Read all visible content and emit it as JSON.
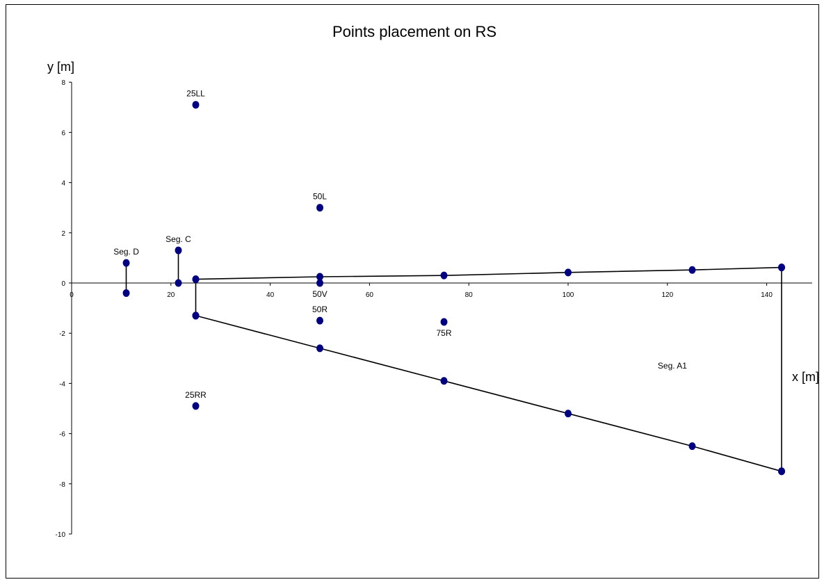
{
  "chart_data": {
    "type": "scatter",
    "title": "Points placement on RS",
    "xlabel": "x [m]",
    "ylabel": "y [m]",
    "xlim": [
      0,
      150
    ],
    "ylim": [
      -10,
      8
    ],
    "x_ticks": [
      0,
      20,
      40,
      60,
      80,
      100,
      120,
      140
    ],
    "y_ticks": [
      8,
      6,
      4,
      2,
      0,
      -2,
      -4,
      -6,
      -8,
      -10
    ],
    "x_tick_labels": [
      "0",
      "20",
      "40",
      "60",
      "80",
      "100",
      "120",
      "140"
    ],
    "y_tick_labels": [
      "8",
      "6",
      "4",
      "2",
      "0",
      "-2",
      "-4",
      "-6",
      "-8",
      "-10"
    ],
    "grid": false,
    "legend": "none",
    "marker_color": "#000080",
    "line_color": "#000000",
    "series": [
      {
        "points": [
          [
            25,
            0.15
          ],
          [
            50,
            0.25
          ],
          [
            75,
            0.3
          ],
          [
            100,
            0.42
          ],
          [
            125,
            0.52
          ],
          [
            143,
            0.62
          ]
        ],
        "line": true
      },
      {
        "points": [
          [
            25,
            -1.3
          ],
          [
            50,
            -2.6
          ],
          [
            75,
            -3.9
          ],
          [
            100,
            -5.2
          ],
          [
            125,
            -6.5
          ],
          [
            143,
            -7.5
          ]
        ],
        "line": true
      },
      {
        "points": [
          [
            25,
            0.15
          ],
          [
            25,
            -1.3
          ]
        ],
        "line": true
      },
      {
        "points": [
          [
            143,
            0.62
          ],
          [
            143,
            -7.5
          ]
        ],
        "line": true
      },
      {
        "points": [
          [
            21.5,
            1.3
          ],
          [
            21.5,
            0
          ]
        ],
        "line": true
      },
      {
        "points": [
          [
            11,
            0.8
          ],
          [
            11,
            -0.4
          ]
        ],
        "line": true
      },
      {
        "points": [
          [
            50,
            0
          ],
          [
            25,
            7.1
          ],
          [
            50,
            3.0
          ],
          [
            50,
            -1.5
          ],
          [
            75,
            -1.55
          ],
          [
            25,
            -4.9
          ]
        ],
        "line": false
      }
    ],
    "annotations": [
      {
        "text": "25LL",
        "x": 25,
        "y": 7.1,
        "position": "above"
      },
      {
        "text": "50L",
        "x": 50,
        "y": 3.0,
        "position": "above"
      },
      {
        "text": "Seg. C",
        "x": 21.5,
        "y": 1.3,
        "position": "above"
      },
      {
        "text": "Seg. D",
        "x": 11,
        "y": 0.8,
        "position": "above"
      },
      {
        "text": "50V",
        "x": 50,
        "y": 0,
        "position": "below"
      },
      {
        "text": "50R",
        "x": 50,
        "y": -1.5,
        "position": "above"
      },
      {
        "text": "75R",
        "x": 75,
        "y": -1.55,
        "position": "below"
      },
      {
        "text": "Seg. A1",
        "x": 121,
        "y": -3.3,
        "position": "center"
      },
      {
        "text": "25RR",
        "x": 25,
        "y": -4.9,
        "position": "above"
      }
    ]
  }
}
